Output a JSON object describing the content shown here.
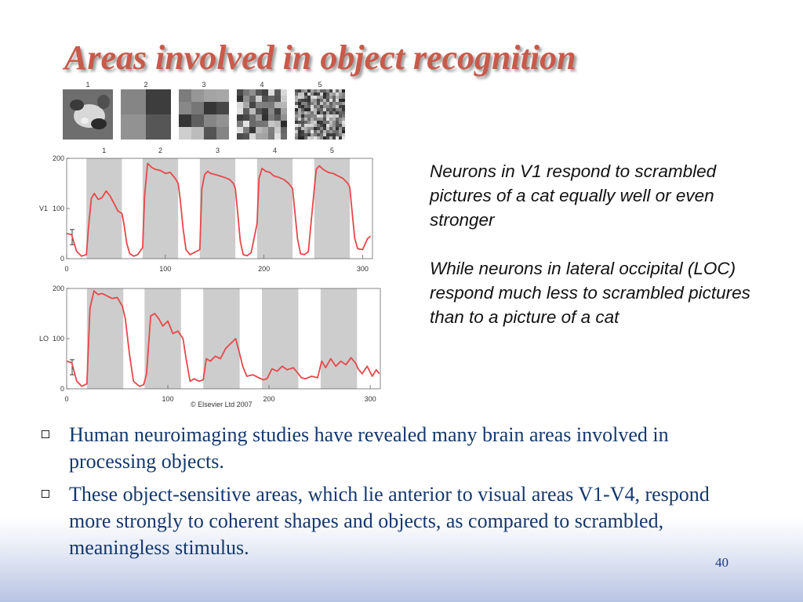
{
  "slide": {
    "title": "Areas involved in object recognition",
    "page_number": "40"
  },
  "figure": {
    "thumbnails": [
      {
        "label": "1"
      },
      {
        "label": "2"
      },
      {
        "label": "3"
      },
      {
        "label": "4"
      },
      {
        "label": "5"
      }
    ],
    "colors": {
      "trace": "#e8474a",
      "stimulus_band": "#cdcdcd"
    },
    "credit": "© Elsevier Ltd 2007"
  },
  "chart_data": [
    {
      "type": "line",
      "ylabel": "V1",
      "xlim": [
        0,
        310
      ],
      "ylim": [
        0,
        200
      ],
      "x_ticks": [
        "0",
        "100",
        "200",
        "300"
      ],
      "y_ticks": [
        "0",
        "100",
        "200"
      ],
      "stimulus_labels": [
        "1",
        "2",
        "3",
        "4",
        "5"
      ],
      "stimulus_periods": [
        [
          20,
          56
        ],
        [
          77,
          113
        ],
        [
          135,
          171
        ],
        [
          193,
          229
        ],
        [
          251,
          287
        ]
      ],
      "series": [
        {
          "x": [
            0,
            5,
            10,
            15,
            20,
            22,
            25,
            28,
            32,
            36,
            40,
            44,
            48,
            52,
            56,
            58,
            61,
            64,
            68,
            72,
            77,
            79,
            82,
            86,
            90,
            95,
            100,
            105,
            110,
            113,
            115,
            118,
            121,
            125,
            129,
            135,
            137,
            140,
            143,
            146,
            150,
            155,
            160,
            165,
            169,
            171,
            173,
            176,
            179,
            183,
            187,
            193,
            195,
            198,
            202,
            206,
            210,
            215,
            220,
            225,
            229,
            231,
            234,
            237,
            241,
            245,
            251,
            253,
            256,
            260,
            265,
            270,
            275,
            280,
            285,
            287,
            289,
            292,
            295,
            300,
            305,
            308
          ],
          "y": [
            50,
            48,
            15,
            5,
            8,
            60,
            120,
            130,
            118,
            122,
            135,
            125,
            110,
            95,
            90,
            70,
            30,
            10,
            5,
            8,
            22,
            125,
            190,
            182,
            178,
            176,
            170,
            172,
            160,
            150,
            120,
            60,
            18,
            8,
            12,
            18,
            140,
            168,
            174,
            170,
            168,
            165,
            162,
            158,
            150,
            140,
            100,
            35,
            8,
            6,
            12,
            70,
            160,
            180,
            174,
            172,
            165,
            162,
            158,
            150,
            140,
            100,
            40,
            10,
            8,
            14,
            140,
            178,
            185,
            178,
            172,
            170,
            165,
            160,
            150,
            142,
            100,
            40,
            20,
            18,
            40,
            45
          ]
        }
      ]
    },
    {
      "type": "line",
      "ylabel": "LO",
      "xlim": [
        0,
        310
      ],
      "ylim": [
        0,
        200
      ],
      "x_ticks": [
        "0",
        "100",
        "200",
        "300"
      ],
      "y_ticks": [
        "0",
        "100",
        "200"
      ],
      "stimulus_periods": [
        [
          20,
          56
        ],
        [
          77,
          113
        ],
        [
          135,
          171
        ],
        [
          193,
          229
        ],
        [
          251,
          287
        ]
      ],
      "series": [
        {
          "x": [
            0,
            5,
            10,
            15,
            20,
            23,
            27,
            31,
            35,
            40,
            45,
            50,
            55,
            58,
            62,
            66,
            72,
            76,
            79,
            83,
            87,
            91,
            95,
            100,
            105,
            110,
            115,
            118,
            122,
            126,
            131,
            135,
            138,
            142,
            147,
            152,
            157,
            162,
            167,
            171,
            174,
            178,
            184,
            190,
            194,
            198,
            203,
            208,
            213,
            218,
            224,
            229,
            232,
            236,
            242,
            248,
            252,
            256,
            261,
            266,
            271,
            276,
            281,
            286,
            288,
            292,
            297,
            302,
            306,
            309
          ],
          "y": [
            55,
            52,
            15,
            5,
            10,
            160,
            195,
            188,
            190,
            185,
            180,
            182,
            165,
            140,
            70,
            15,
            5,
            8,
            30,
            145,
            150,
            140,
            125,
            135,
            110,
            115,
            100,
            60,
            15,
            20,
            15,
            18,
            60,
            55,
            65,
            60,
            80,
            90,
            100,
            70,
            45,
            25,
            28,
            22,
            18,
            20,
            40,
            35,
            45,
            38,
            42,
            30,
            22,
            20,
            25,
            22,
            55,
            42,
            60,
            45,
            55,
            48,
            62,
            50,
            40,
            30,
            45,
            25,
            38,
            30
          ]
        }
      ]
    }
  ],
  "notes": [
    "Neurons in V1 respond to scrambled pictures of a cat equally well or even stronger",
    "While neurons in lateral occipital (LOC) respond much less to scrambled pictures than to a picture of a cat"
  ],
  "bullets": [
    "Human neuroimaging studies have revealed many brain areas involved in processing objects.",
    "These object-sensitive areas, which lie anterior to visual areas V1-V4, respond more strongly to coherent shapes and objects, as compared to scrambled, meaningless stimulus."
  ]
}
